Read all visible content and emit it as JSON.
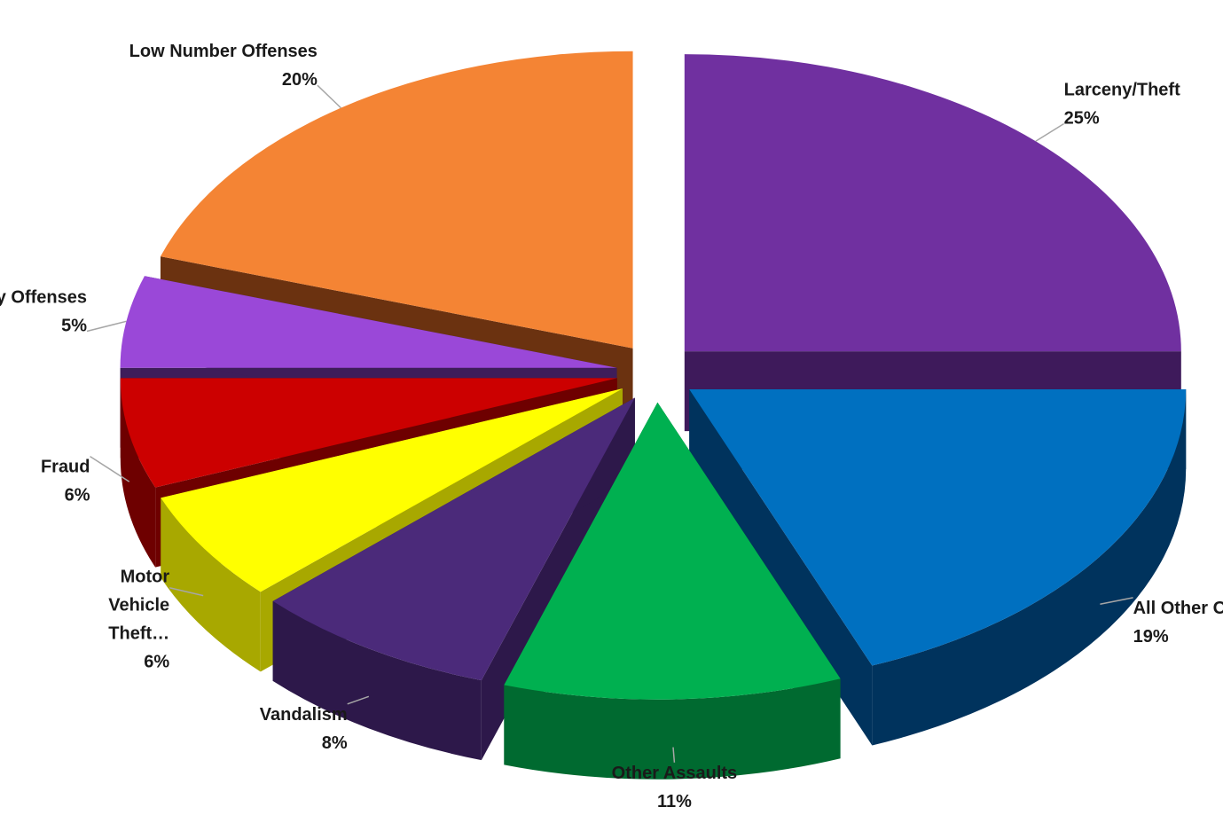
{
  "chart_data": {
    "type": "pie",
    "title": "",
    "style": "3d-exploded",
    "slices": [
      {
        "name": "Larceny/Theft",
        "pct_label": "25%",
        "value": 25,
        "color": "#7030a0",
        "side": "#3e1a5b"
      },
      {
        "name": "All Other Offenses",
        "pct_label": "19%",
        "value": 19,
        "color": "#0070c0",
        "side": "#00335d"
      },
      {
        "name": "Other Assaults",
        "pct_label": "11%",
        "value": 11,
        "color": "#00b050",
        "side": "#006a30"
      },
      {
        "name": "Vandalism",
        "pct_label": "8%",
        "value": 8,
        "color": "#4b2a7a",
        "side": "#2d184a"
      },
      {
        "name": "Motor Vehicle Theft...",
        "pct_label": "6%",
        "value": 6,
        "color": "#ffff00",
        "side": "#a8a800"
      },
      {
        "name": "Fraud",
        "pct_label": "6%",
        "value": 6,
        "color": "#cc0000",
        "side": "#6e0000"
      },
      {
        "name": "Family Offenses",
        "pct_label": "5%",
        "value": 5,
        "color": "#9a48d8",
        "side": "#3e1d5a"
      },
      {
        "name": "Low Number Offenses",
        "pct_label": "20%",
        "value": 20,
        "color": "#f48434",
        "side": "#6b3210"
      }
    ],
    "label_lines": {
      "Larceny/Theft": [
        "Larceny/Theft"
      ],
      "All Other Offenses": [
        "All Other Offenses"
      ],
      "Other Assaults": [
        "Other Assaults"
      ],
      "Vandalism": [
        "Vandalism"
      ],
      "Motor Vehicle Theft...": [
        "Motor",
        "Vehicle",
        "Theft…"
      ],
      "Fraud": [
        "Fraud"
      ],
      "Family Offenses": [
        "Family Offenses"
      ],
      "Low Number Offenses": [
        "Low Number Offenses"
      ]
    }
  }
}
